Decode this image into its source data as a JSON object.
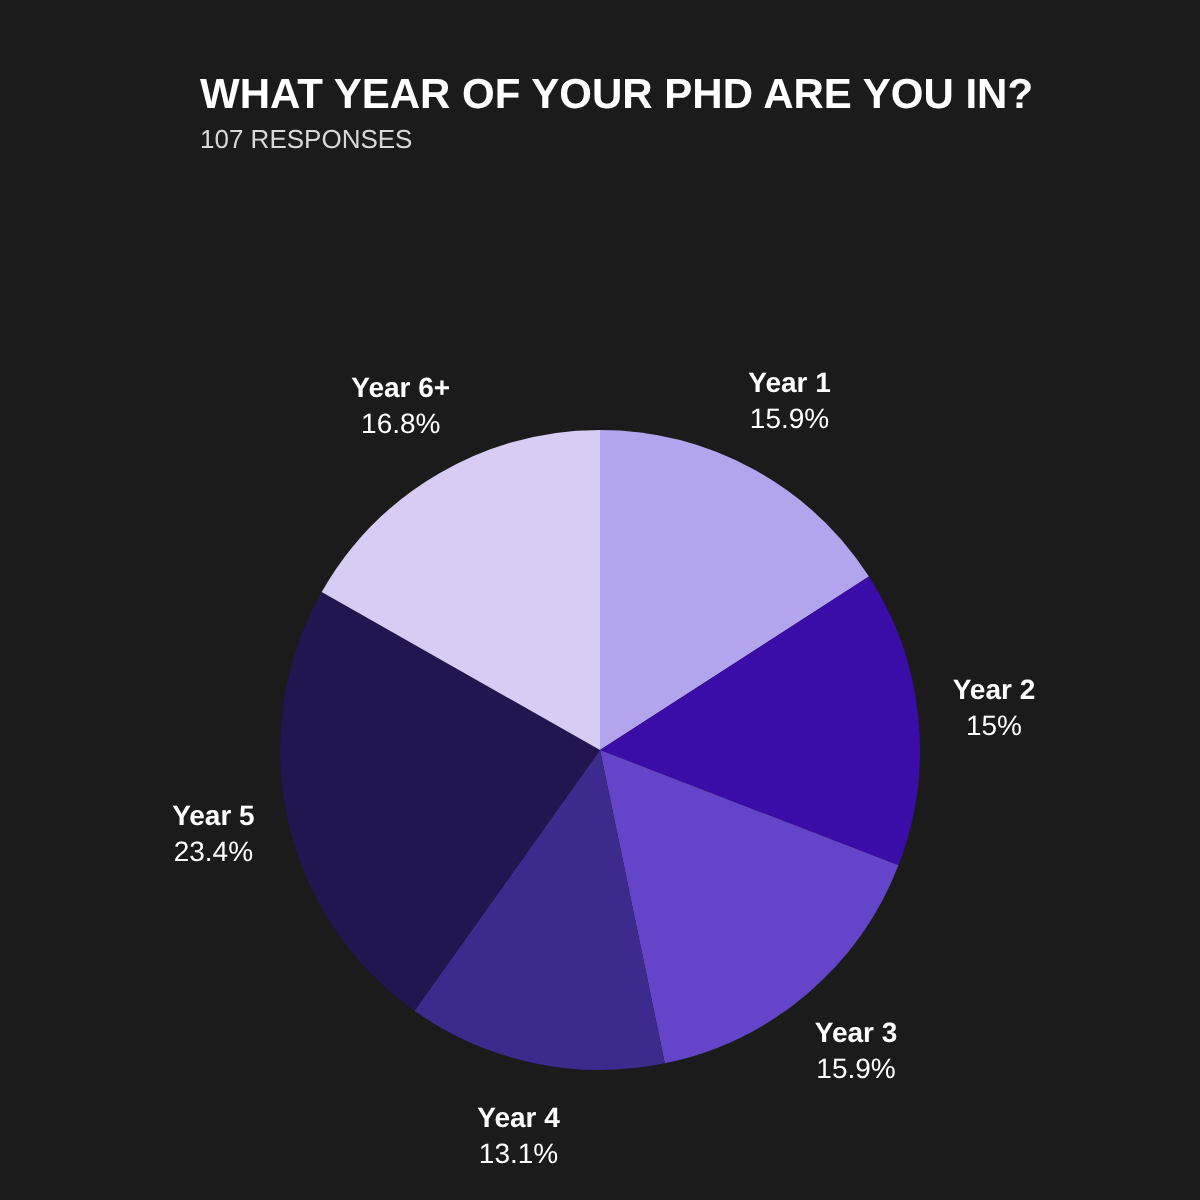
{
  "chart_data": {
    "type": "pie",
    "title": "WHAT YEAR OF YOUR PHD ARE YOU IN?",
    "subtitle": "107 RESPONSES",
    "categories": [
      "Year 1",
      "Year 2",
      "Year 3",
      "Year 4",
      "Year 5",
      "Year 6+"
    ],
    "values": [
      15.9,
      15,
      15.9,
      13.1,
      23.4,
      16.8
    ],
    "value_labels": [
      "15.9%",
      "15%",
      "15.9%",
      "13.1%",
      "23.4%",
      "16.8%"
    ],
    "colors": [
      "#b3a4ee",
      "#3a0ca8",
      "#6444c8",
      "#3c2a8c",
      "#231650",
      "#d8ccf4"
    ],
    "legend": false
  }
}
